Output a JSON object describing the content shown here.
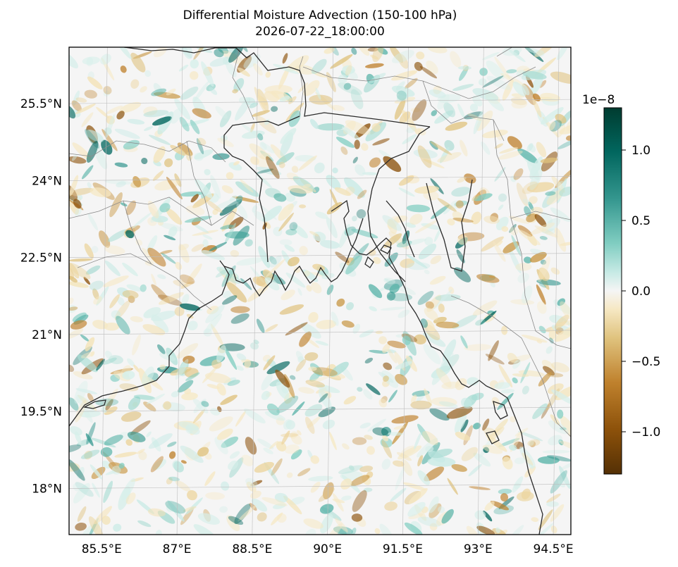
{
  "title": "Differential Moisture Advection (150-100 hPa)",
  "subtitle": "2026-07-22_18:00:00",
  "map": {
    "lat_ticks": [
      {
        "value": 25.5,
        "label": "25.5°N"
      },
      {
        "value": 24.0,
        "label": "24°N"
      },
      {
        "value": 22.5,
        "label": "22.5°N"
      },
      {
        "value": 21.0,
        "label": "21°N"
      },
      {
        "value": 19.5,
        "label": "19.5°N"
      },
      {
        "value": 18.0,
        "label": "18°N"
      }
    ],
    "lon_ticks": [
      {
        "value": 85.5,
        "label": "85.5°E"
      },
      {
        "value": 87.0,
        "label": "87°E"
      },
      {
        "value": 88.5,
        "label": "88.5°E"
      },
      {
        "value": 90.0,
        "label": "90°E"
      },
      {
        "value": 91.5,
        "label": "91.5°E"
      },
      {
        "value": 93.0,
        "label": "93°E"
      },
      {
        "value": 94.5,
        "label": "94.5°E"
      }
    ],
    "lon_range": [
      84.85,
      94.85
    ],
    "lat_range": [
      17.1,
      26.6
    ],
    "colormap": "BrBG",
    "colors": {
      "neg": "#543005",
      "mid": "#f5f5f5",
      "pos": "#003c30"
    }
  },
  "colorbar": {
    "multiplier": "1e−8",
    "range": [
      -1.3,
      1.3
    ],
    "ticks": [
      {
        "value": 1.0,
        "label": "1.0"
      },
      {
        "value": 0.5,
        "label": "0.5"
      },
      {
        "value": 0.0,
        "label": "0.0"
      },
      {
        "value": -0.5,
        "label": "−0.5"
      },
      {
        "value": -1.0,
        "label": "−1.0"
      }
    ]
  }
}
